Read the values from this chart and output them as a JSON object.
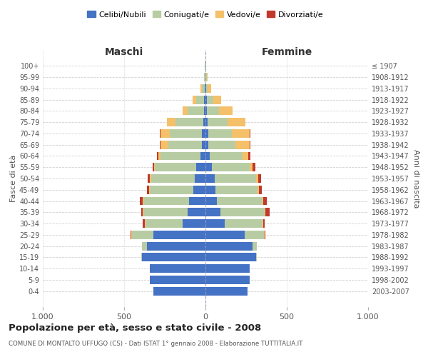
{
  "age_groups": [
    "0-4",
    "5-9",
    "10-14",
    "15-19",
    "20-24",
    "25-29",
    "30-34",
    "35-39",
    "40-44",
    "45-49",
    "50-54",
    "55-59",
    "60-64",
    "65-69",
    "70-74",
    "75-79",
    "80-84",
    "85-89",
    "90-94",
    "95-99",
    "100+"
  ],
  "year_ranges": [
    "2003-2007",
    "1998-2002",
    "1993-1997",
    "1988-1992",
    "1983-1987",
    "1978-1982",
    "1973-1977",
    "1968-1972",
    "1963-1967",
    "1958-1962",
    "1953-1957",
    "1948-1952",
    "1943-1947",
    "1938-1942",
    "1933-1937",
    "1928-1932",
    "1923-1927",
    "1918-1922",
    "1913-1917",
    "1908-1912",
    "≤ 1907"
  ],
  "male": {
    "celibi": [
      320,
      340,
      340,
      390,
      360,
      320,
      140,
      110,
      100,
      75,
      65,
      55,
      30,
      20,
      20,
      15,
      10,
      8,
      5,
      2,
      2
    ],
    "coniugati": [
      0,
      0,
      0,
      5,
      30,
      130,
      230,
      270,
      280,
      265,
      270,
      255,
      245,
      210,
      200,
      170,
      100,
      50,
      15,
      5,
      2
    ],
    "vedovi": [
      0,
      0,
      0,
      0,
      0,
      5,
      5,
      5,
      5,
      5,
      5,
      5,
      15,
      45,
      55,
      50,
      30,
      20,
      10,
      2,
      0
    ],
    "divorziati": [
      0,
      0,
      0,
      0,
      0,
      5,
      10,
      10,
      20,
      15,
      15,
      10,
      10,
      5,
      5,
      0,
      0,
      0,
      0,
      0,
      0
    ]
  },
  "female": {
    "nubili": [
      260,
      270,
      270,
      310,
      290,
      240,
      120,
      90,
      70,
      60,
      55,
      40,
      25,
      18,
      18,
      15,
      10,
      8,
      5,
      2,
      2
    ],
    "coniugate": [
      0,
      0,
      0,
      5,
      25,
      120,
      230,
      275,
      280,
      260,
      255,
      230,
      205,
      165,
      145,
      120,
      75,
      40,
      10,
      5,
      2
    ],
    "vedove": [
      0,
      0,
      0,
      0,
      0,
      5,
      5,
      5,
      5,
      10,
      15,
      20,
      35,
      90,
      110,
      110,
      80,
      50,
      20,
      5,
      0
    ],
    "divorziate": [
      0,
      0,
      0,
      0,
      0,
      5,
      10,
      25,
      20,
      15,
      15,
      15,
      10,
      5,
      5,
      0,
      0,
      0,
      0,
      0,
      0
    ]
  },
  "colors": {
    "celibi": "#4472c4",
    "coniugati": "#b8cca4",
    "vedovi": "#f5c06a",
    "divorziati": "#c0392b"
  },
  "title": "Popolazione per età, sesso e stato civile - 2008",
  "subtitle": "COMUNE DI MONTALTO UFFUGO (CS) - Dati ISTAT 1° gennaio 2008 - Elaborazione TUTTITALIA.IT",
  "xlabel_left": "Maschi",
  "xlabel_right": "Femmine",
  "ylabel_left": "Fasce di età",
  "ylabel_right": "Anni di nascita",
  "legend_labels": [
    "Celibi/Nubili",
    "Coniugati/e",
    "Vedovi/e",
    "Divorziati/e"
  ],
  "xlim": 1000,
  "background_color": "#ffffff",
  "grid_color": "#cccccc"
}
